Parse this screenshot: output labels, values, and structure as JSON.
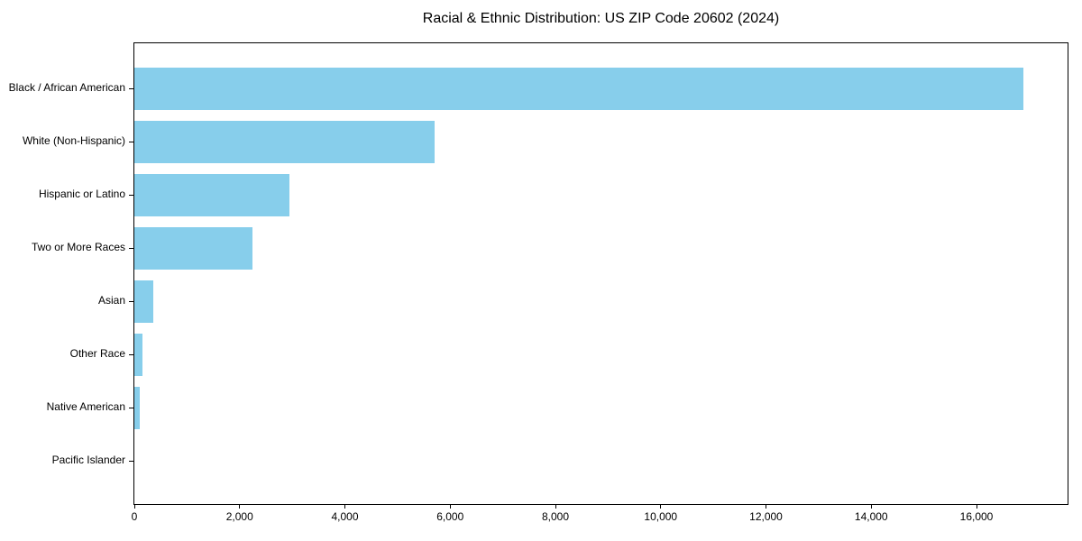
{
  "figure": {
    "background": "#ffffff",
    "text_color": "#000000"
  },
  "chart_data": {
    "type": "bar",
    "orientation": "horizontal",
    "title": "Racial & Ethnic Distribution: US ZIP Code 20602 (2024)",
    "xlabel": "",
    "ylabel": "",
    "categories": [
      "Black / African American",
      "White (Non-Hispanic)",
      "Hispanic or Latino",
      "Two or More Races",
      "Asian",
      "Other Race",
      "Native American",
      "Pacific Islander"
    ],
    "values": [
      16890,
      5700,
      2940,
      2240,
      360,
      150,
      100,
      0
    ],
    "xlim": [
      0,
      17730
    ],
    "x_ticks": [
      0,
      2000,
      4000,
      6000,
      8000,
      10000,
      12000,
      14000,
      16000
    ],
    "x_tick_labels": [
      "0",
      "2,000",
      "4,000",
      "6,000",
      "8,000",
      "10,000",
      "12,000",
      "14,000",
      "16,000"
    ],
    "bar_color": "#87CEEB",
    "bar_height_fraction": 0.79,
    "grid": false,
    "legend": null
  }
}
